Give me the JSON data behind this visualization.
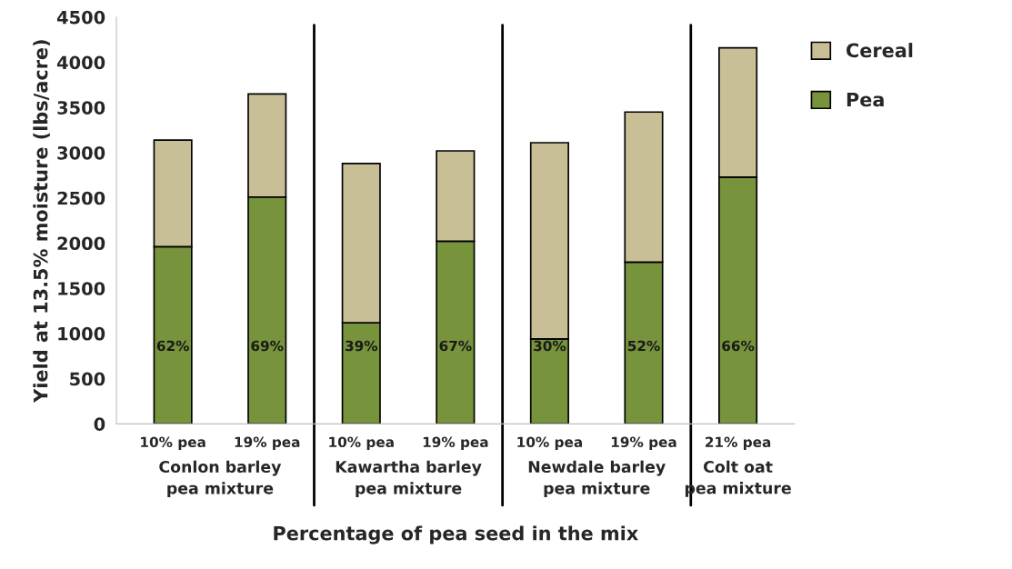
{
  "chart_data": {
    "type": "bar",
    "stacked": true,
    "xlabel": "Percentage of pea seed in the mix",
    "ylabel": "Yield at 13.5% moisture (lbs/acre)",
    "categories": [
      "10% pea",
      "19% pea",
      "10% pea",
      "19% pea",
      "10% pea",
      "19% pea",
      "21% pea"
    ],
    "series": [
      {
        "name": "Pea",
        "color": "#77933c",
        "values": [
          1960,
          2510,
          1120,
          2020,
          940,
          1790,
          2730
        ]
      },
      {
        "name": "Cereal",
        "color": "#c8bf96",
        "values": [
          1180,
          1140,
          1760,
          1000,
          2170,
          1660,
          1430
        ]
      }
    ],
    "ylim": [
      0,
      4500
    ],
    "yticks": [
      0,
      500,
      1000,
      1500,
      2000,
      2500,
      3000,
      3500,
      4000,
      4500
    ],
    "annotations": [
      "62%",
      "69%",
      "39%",
      "67%",
      "30%",
      "52%",
      "66%",
      "Conlon barley\npea mixture",
      "Kawartha barley\npea mixture",
      "Newdale barley\npea mixture",
      "Colt oat\npea mixture"
    ],
    "legend": "right",
    "grid": false
  }
}
